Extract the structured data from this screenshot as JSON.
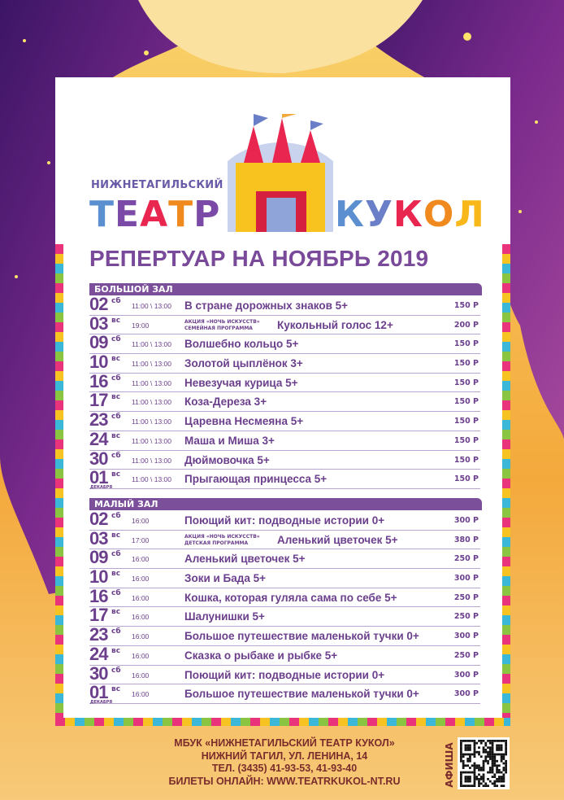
{
  "logo": {
    "subtitle": "НИЖНЕТАГИЛЬСКИЙ",
    "word1": [
      "Т",
      "Е",
      "А",
      "Т",
      "Р"
    ],
    "word2": [
      "К",
      "У",
      "К",
      "О",
      "Л"
    ],
    "word1_colors": [
      "#5b8fd0",
      "#7a4aa6",
      "#e8264f",
      "#f08a1e",
      "#7a4aa6"
    ],
    "word2_colors": [
      "#5b8fd0",
      "#6a7fc8",
      "#e8264f",
      "#f08a1e",
      "#f8b81a"
    ]
  },
  "title": "РЕПЕРТУАР НА НОЯБРЬ 2019",
  "colors": {
    "accent": "#7b4f9a",
    "text": "#6b3f8c",
    "curtain": "#5a1f7a",
    "gold": "#f6b840"
  },
  "big_hall": {
    "label": "БОЛЬШОЙ ЗАЛ",
    "rows": [
      {
        "date": "02",
        "day": "сб",
        "time": "11:00 \\ 13:00",
        "title": "В стране дорожных знаков 5+",
        "price": "150 Р"
      },
      {
        "date": "03",
        "day": "вс",
        "time": "19:00",
        "note1": "АКЦИЯ «НОЧЬ ИСКУССТВ»",
        "note2": "СЕМЕЙНАЯ ПРОГРАММА",
        "title": "Кукольный голос 12+",
        "price": "200 Р"
      },
      {
        "date": "09",
        "day": "сб",
        "time": "11:00 \\ 13:00",
        "title": "Волшебно кольцо 5+",
        "price": "150 Р"
      },
      {
        "date": "10",
        "day": "вс",
        "time": "11:00 \\ 13:00",
        "title": "Золотой цыплёнок 3+",
        "price": "150 Р"
      },
      {
        "date": "16",
        "day": "сб",
        "time": "11:00 \\ 13:00",
        "title": "Невезучая курица 5+",
        "price": "150 Р"
      },
      {
        "date": "17",
        "day": "вс",
        "time": "11:00 \\ 13:00",
        "title": "Коза-Дереза 3+",
        "price": "150 Р"
      },
      {
        "date": "23",
        "day": "сб",
        "time": "11:00 \\ 13:00",
        "title": "Царевна Несмеяна 5+",
        "price": "150 Р"
      },
      {
        "date": "24",
        "day": "вс",
        "time": "11:00 \\ 13:00",
        "title": "Маша и Миша 3+",
        "price": "150 Р"
      },
      {
        "date": "30",
        "day": "сб",
        "time": "11:00 \\ 13:00",
        "title": "Дюймовочка 5+",
        "price": "150 Р"
      },
      {
        "date": "01",
        "day": "вс",
        "month": "ДЕКАБРЯ",
        "time": "11:00 \\ 13:00",
        "title": "Прыгающая принцесса 5+",
        "price": "150 Р"
      }
    ]
  },
  "small_hall": {
    "label": "МАЛЫЙ ЗАЛ",
    "rows": [
      {
        "date": "02",
        "day": "сб",
        "time": "16:00",
        "title": "Поющий кит: подводные истории 0+",
        "price": "300 Р"
      },
      {
        "date": "03",
        "day": "вс",
        "time": "17:00",
        "note1": "АКЦИЯ «НОЧЬ ИСКУССТВ»",
        "note2": "ДЕТСКАЯ ПРОГРАММА",
        "title": "Аленький цветочек 5+",
        "price": "380 Р"
      },
      {
        "date": "09",
        "day": "сб",
        "time": "16:00",
        "title": "Аленький цветочек 5+",
        "price": "250 Р"
      },
      {
        "date": "10",
        "day": "вс",
        "time": "16:00",
        "title": "Зоки и Бада 5+",
        "price": "300 Р"
      },
      {
        "date": "16",
        "day": "сб",
        "time": "16:00",
        "title": "Кошка, которая гуляла сама по себе 5+",
        "price": "250 Р"
      },
      {
        "date": "17",
        "day": "вс",
        "time": "16:00",
        "title": "Шалунишки 5+",
        "price": "250 Р"
      },
      {
        "date": "23",
        "day": "сб",
        "time": "16:00",
        "title": "Большое путешествие маленькой тучки 0+",
        "price": "300 Р"
      },
      {
        "date": "24",
        "day": "вс",
        "time": "16:00",
        "title": "Сказка о рыбаке и рыбке 5+",
        "price": "250 Р"
      },
      {
        "date": "30",
        "day": "сб",
        "time": "16:00",
        "title": "Поющий кит: подводные истории 0+",
        "price": "300 Р"
      },
      {
        "date": "01",
        "day": "вс",
        "month": "ДЕКАБРЯ",
        "time": "16:00",
        "title": "Большое путешествие маленькой тучки 0+",
        "price": "300 Р"
      }
    ]
  },
  "footer": {
    "line1": "МБУК «НИЖНЕТАГИЛЬСКИЙ ТЕАТР КУКОЛ»",
    "line2": "НИЖНИЙ ТАГИЛ, УЛ. ЛЕНИНА, 14",
    "line3": "ТЕЛ. (3435) 41-93-53, 41-93-40",
    "line4": "БИЛЕТЫ ОНЛАЙН: WWW.TEATRKUKOL-NT.RU",
    "afisha": "АФИША",
    "qr_icon": "qr-code-icon"
  }
}
